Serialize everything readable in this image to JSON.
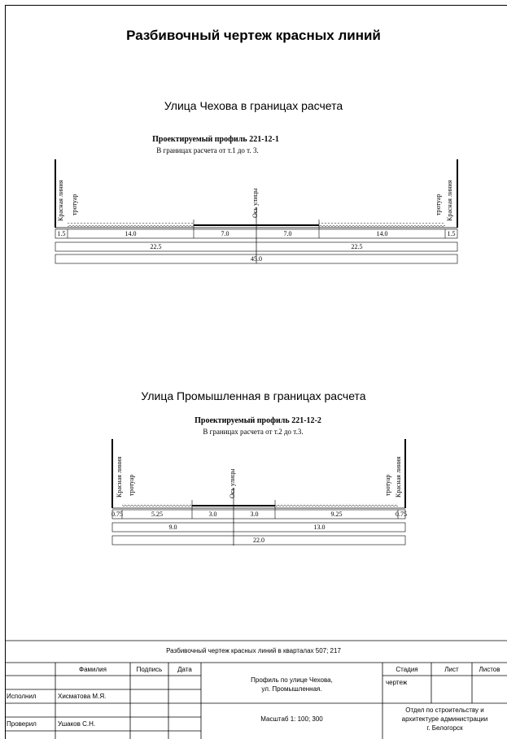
{
  "title": "Разбивочный чертеж красных линий",
  "section1": {
    "street": "Улица Чехова в границах расчета",
    "profile": "Проектируемый профиль  221-12-1",
    "range": "В границах расчета от т.1 до т. 3.",
    "left_red_line": "Красная линия",
    "left_sidewalk": "тротуар",
    "axis": "Ось улицы",
    "right_sidewalk": "тротуар",
    "right_red_line": "Красная линия",
    "row1": [
      "1.5",
      "14.0",
      "7.0",
      "7.0",
      "14.0",
      "1.5"
    ],
    "row2": [
      "22.5",
      "22.5"
    ],
    "row3": "45.0"
  },
  "section2": {
    "street": "Улица Промышленная в границах расчета",
    "profile": "Проектируемый профиль   221-12-2",
    "range": "В границах расчета от т.2 до т.3.",
    "left_red_line": "Красная линия",
    "left_sidewalk": "тротуар",
    "axis": "Ось улицы",
    "right_sidewalk": "тротуар",
    "right_red_line": "Красная линия",
    "row1": [
      "0.75",
      "5.25",
      "3.0",
      "3.0",
      "9.25",
      "0.75"
    ],
    "row2": [
      "9.0",
      "13.0"
    ],
    "row3": "22.0"
  },
  "title_block": {
    "drawing_name": "Разбивочный чертеж красных линий в кварталах 507; 217",
    "col_surname": "Фамилия",
    "col_signature": "Подпись",
    "col_date": "Дата",
    "role_executor": "Исполнил",
    "executor_name": "Хисматова М.Я.",
    "role_checker": "Проверил",
    "checker_name": "Ушаков С.Н.",
    "sheet_title_line1": "Профиль по улице Чехова,",
    "sheet_title_line2": "ул. Промышленная.",
    "scale": "Масштаб  1: 100; 300",
    "stage_label": "Стадия",
    "sheet_label": "Лист",
    "sheets_label": "Листов",
    "stage_value": "чертеж",
    "org_line1": "Отдел по строительству и",
    "org_line2": "архитектуре администрации",
    "org_line3": "г. Белогорск"
  }
}
